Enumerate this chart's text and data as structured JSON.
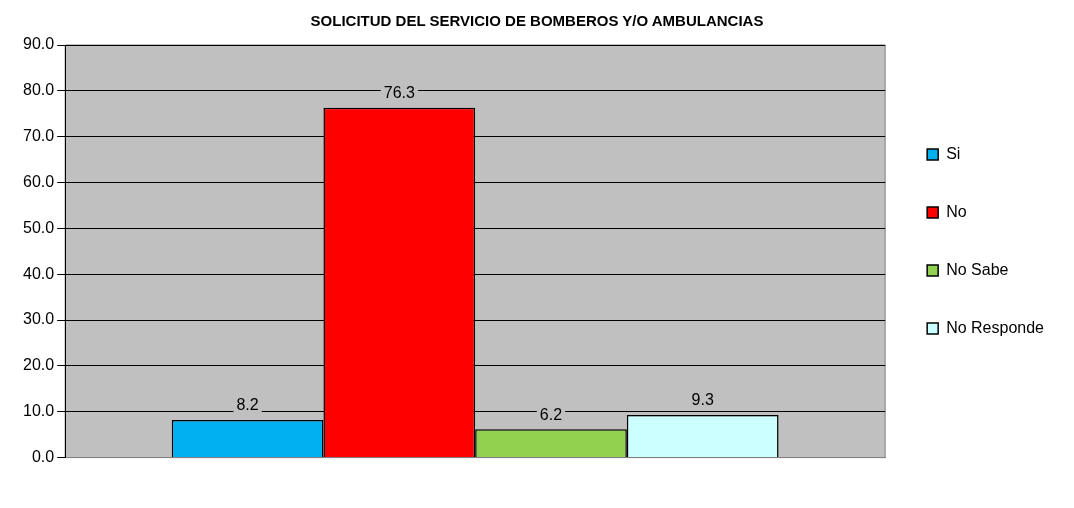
{
  "chart_data": {
    "type": "bar",
    "title": "SOLICITUD DEL SERVICIO DE BOMBEROS Y/O AMBULANCIAS",
    "categories": [
      null
    ],
    "series": [
      {
        "name": "Si",
        "color": "#00b0f0",
        "values": [
          8.2
        ]
      },
      {
        "name": "No",
        "color": "#ff0000",
        "values": [
          76.3
        ]
      },
      {
        "name": "No Sabe",
        "color": "#92d050",
        "values": [
          6.2
        ]
      },
      {
        "name": "No Responde",
        "color": "#ccffff",
        "values": [
          9.3
        ]
      }
    ],
    "ylim": [
      0,
      90
    ],
    "yticks": [
      {
        "value": 0,
        "label": "0.0"
      },
      {
        "value": 10,
        "label": "10.0"
      },
      {
        "value": 20,
        "label": "20.0"
      },
      {
        "value": 30,
        "label": "30.0"
      },
      {
        "value": 40,
        "label": "40.0"
      },
      {
        "value": 50,
        "label": "50.0"
      },
      {
        "value": 60,
        "label": "60.0"
      },
      {
        "value": 70,
        "label": "70.0"
      },
      {
        "value": 80,
        "label": "80.0"
      },
      {
        "value": 90,
        "label": "90.0"
      }
    ],
    "grid": "y",
    "legend": "right",
    "data_labels": true
  }
}
